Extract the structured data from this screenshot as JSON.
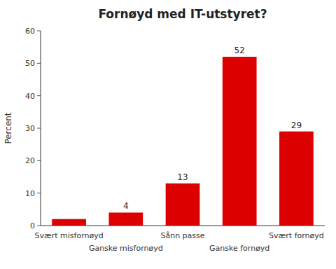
{
  "chart_data": {
    "type": "bar",
    "title": "Fornøyd med IT-utstyret?",
    "ylabel": "Percent",
    "categories": [
      "Svært misfornøyd",
      "Ganske misfornøyd",
      "Sånn passe",
      "Ganske fornøyd",
      "Svært fornøyd"
    ],
    "values": [
      2,
      4,
      13,
      52,
      29
    ],
    "value_labels": [
      null,
      "4",
      "13",
      "52",
      "29"
    ],
    "data_labels": true,
    "color": "#dd0000",
    "ylim": [
      0,
      60
    ],
    "yticks": [
      0,
      10,
      20,
      30,
      40,
      50,
      60
    ],
    "grid": false
  }
}
